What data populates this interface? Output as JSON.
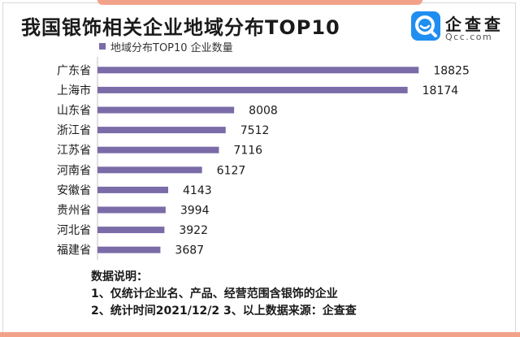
{
  "title": "我国银饰相关企业地域分布TOP10",
  "logo": {
    "name": "企查查",
    "sub": "Qcc.com",
    "icon": "qcc-logo-icon",
    "color": "#1f8ef1"
  },
  "colors": {
    "bar": "#7b6ba8",
    "accent": "#f3a28a"
  },
  "chart_data": {
    "type": "bar",
    "orientation": "horizontal",
    "title": "我国银饰相关企业地域分布TOP10",
    "legend": "地域分布TOP10 企业数量",
    "legend_position": "top-left",
    "series": [
      {
        "name": "地域分布TOP10 企业数量",
        "values": [
          18825,
          18174,
          8008,
          7512,
          7116,
          6127,
          4143,
          3994,
          3922,
          3687
        ]
      }
    ],
    "categories": [
      "广东省",
      "上海市",
      "山东省",
      "浙江省",
      "江苏省",
      "河南省",
      "安徽省",
      "贵州省",
      "河北省",
      "福建省"
    ],
    "xlim": [
      0,
      20000
    ],
    "grid": false,
    "data_labels": true
  },
  "notes": {
    "heading": "数据说明：",
    "lines": [
      "1、仅统计企业名、产品、经营范围含银饰的企业",
      "2、统计时间2021/12/2   3、以上数据来源：企查查"
    ]
  }
}
